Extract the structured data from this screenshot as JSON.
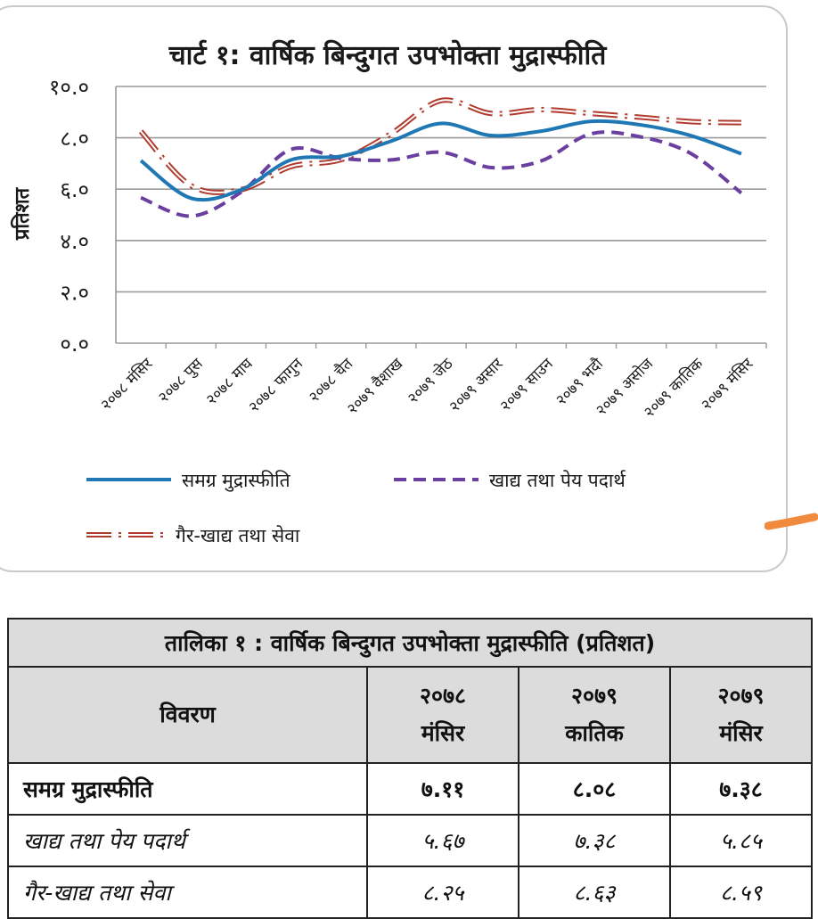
{
  "chart_data": {
    "type": "line",
    "title": "चार्ट १: वार्षिक बिन्दुगत उपभोक्ता मुद्रास्फीति",
    "ylabel": "प्रतिशत",
    "xlabel": "",
    "ylim": [
      0,
      10
    ],
    "yticks": [
      0,
      2,
      4,
      6,
      8,
      10
    ],
    "ytick_labels": [
      "०.०",
      "२.०",
      "४.०",
      "६.०",
      "८.०",
      "१०.०"
    ],
    "grid": true,
    "legend_position": "bottom",
    "categories": [
      "२०७८ मंसिर",
      "२०७८ पुस",
      "२०७८ माघ",
      "२०७८ फागुन",
      "२०७८ चैत",
      "२०७९ वैशाख",
      "२०७९ जेठ",
      "२०७९ असार",
      "२०७९ साउन",
      "२०७९ भदौ",
      "२०७९ असोज",
      "२०७९ कातिक",
      "२०७९ मंसिर"
    ],
    "series": [
      {
        "name": "समग्र मुद्रास्फीति",
        "color": "#1f77b4",
        "style": "solid",
        "values": [
          7.11,
          5.65,
          5.97,
          7.14,
          7.28,
          7.87,
          8.56,
          8.09,
          8.26,
          8.64,
          8.5,
          8.08,
          7.38
        ]
      },
      {
        "name": "खाद्य तथा पेय पदार्थ",
        "color": "#6a3fa0",
        "style": "dashed",
        "values": [
          5.67,
          4.95,
          5.88,
          7.55,
          7.2,
          7.14,
          7.44,
          6.84,
          7.1,
          8.16,
          8.03,
          7.38,
          5.85
        ]
      },
      {
        "name": "गैर-खाद्य तथा सेवा",
        "color": "#b03a2e",
        "style": "double-dash-dot",
        "values": [
          8.25,
          6.14,
          5.98,
          6.88,
          7.15,
          8.16,
          9.45,
          8.95,
          9.1,
          8.95,
          8.8,
          8.63,
          8.59
        ]
      }
    ]
  },
  "table": {
    "caption": "तालिका १ : वार्षिक बिन्दुगत उपभोक्ता मुद्रास्फीति (प्रतिशत)",
    "header_label": "विवरण",
    "columns": [
      {
        "year": "२०७८",
        "month": "मंसिर"
      },
      {
        "year": "२०७९",
        "month": "कातिक"
      },
      {
        "year": "२०७९",
        "month": "मंसिर"
      }
    ],
    "rows": [
      {
        "label": "समग्र मुद्रास्फीति",
        "values": [
          "७.११",
          "८.०८",
          "७.३८"
        ],
        "style": "bold"
      },
      {
        "label": "खाद्य तथा पेय पदार्थ",
        "values": [
          "५.६७",
          "७.३८",
          "५.८५"
        ],
        "style": "italic"
      },
      {
        "label": "गैर-खाद्य तथा सेवा",
        "values": [
          "८.२५",
          "८.६३",
          "८.५९"
        ],
        "style": "italic"
      }
    ]
  }
}
